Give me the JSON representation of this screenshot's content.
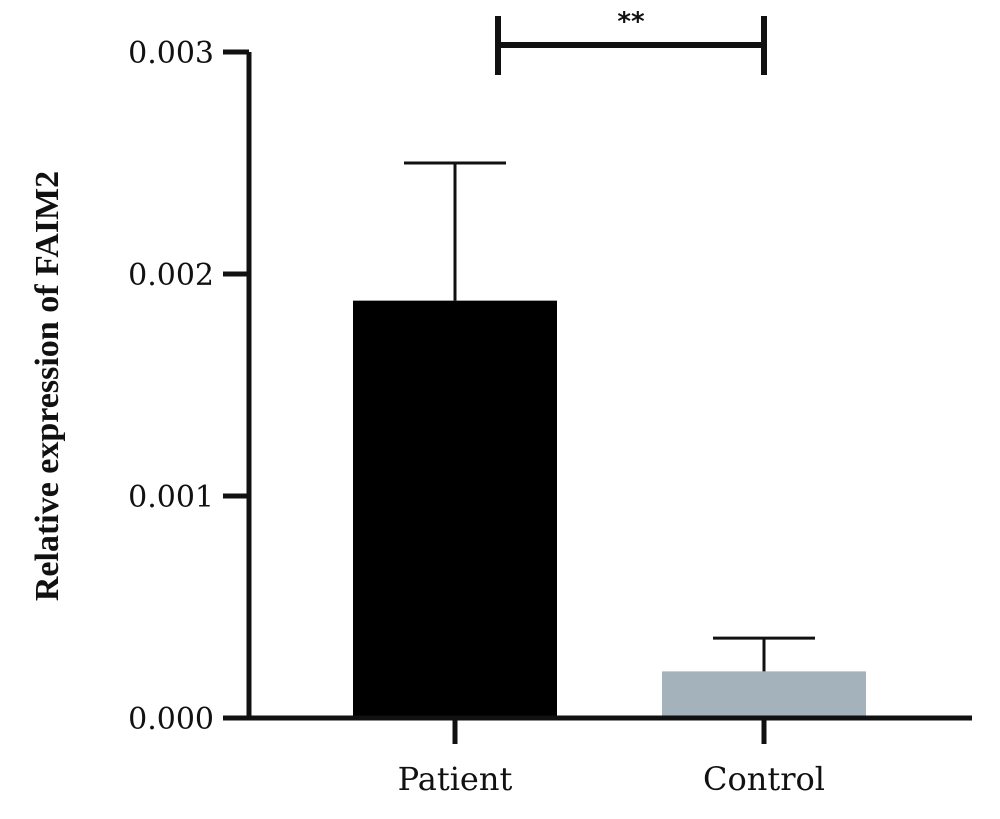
{
  "chart_data": {
    "type": "bar",
    "ylabel": "Relative expression of FAIM2",
    "xlabel": "",
    "categories": [
      "Patient",
      "Control"
    ],
    "values": [
      0.00188,
      0.00021
    ],
    "errors_upper": [
      0.00062,
      0.00015
    ],
    "colors": [
      "#000000",
      "#a4b3bb"
    ],
    "ylim": [
      0,
      0.003
    ],
    "yticks": [
      0,
      0.001,
      0.002,
      0.003
    ],
    "ytick_labels": [
      "0.000",
      "0.001",
      "0.002",
      "0.003"
    ],
    "significance": {
      "between": [
        "Patient",
        "Control"
      ],
      "label": "**"
    },
    "grid": false,
    "legend": false
  }
}
